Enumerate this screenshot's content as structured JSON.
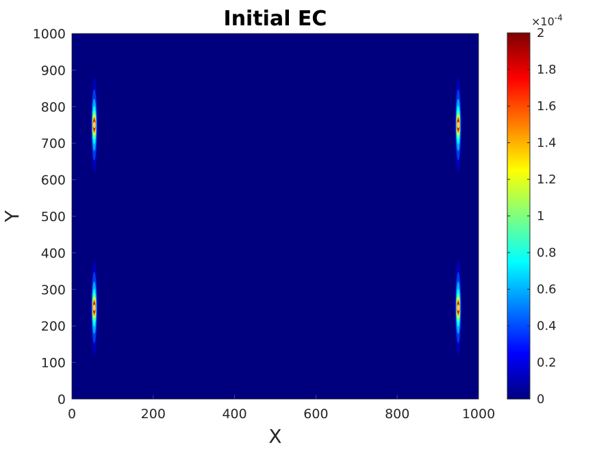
{
  "chart_data": {
    "type": "heatmap",
    "title": "Initial EC",
    "xlabel": "X",
    "ylabel": "Y",
    "xlim": [
      0,
      1000
    ],
    "ylim": [
      0,
      1000
    ],
    "x_ticks": [
      "0",
      "200",
      "400",
      "600",
      "800",
      "1000"
    ],
    "y_ticks": [
      "0",
      "100",
      "200",
      "300",
      "400",
      "500",
      "600",
      "700",
      "800",
      "900",
      "1000"
    ],
    "colormap": "jet",
    "background_color": "#00007f",
    "colorbar": {
      "min": 0,
      "max": 2,
      "ticks": [
        "0",
        "0.2",
        "0.4",
        "0.6",
        "0.8",
        "1",
        "1.2",
        "1.4",
        "1.6",
        "1.8",
        "2"
      ],
      "exponent_label": "×10",
      "exponent_power": "-4",
      "gradient_colors": [
        "#00007f",
        "#0000ff",
        "#007fff",
        "#00ffff",
        "#7fff7f",
        "#ffff00",
        "#ff7f00",
        "#ff0000",
        "#7f0000"
      ]
    },
    "hotspots": [
      {
        "x": 55,
        "y": 750,
        "peak": 2,
        "spread_x": 8,
        "spread_y": 130
      },
      {
        "x": 55,
        "y": 250,
        "peak": 2,
        "spread_x": 8,
        "spread_y": 130
      },
      {
        "x": 950,
        "y": 750,
        "peak": 2,
        "spread_x": 8,
        "spread_y": 130
      },
      {
        "x": 950,
        "y": 250,
        "peak": 2,
        "spread_x": 8,
        "spread_y": 130
      }
    ]
  }
}
